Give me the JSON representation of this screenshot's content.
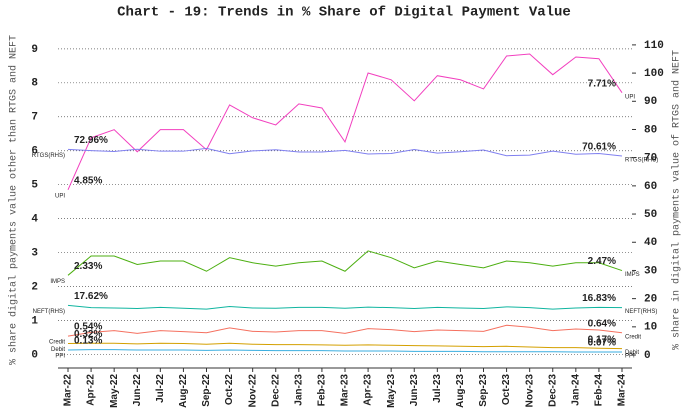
{
  "chart_data": {
    "type": "line",
    "title": "Chart - 19: Trends in % Share of Digital Payment Value",
    "y_label": "% share digital payments value other than RTGS and NEFT",
    "y2_label": "% share in digital payments value of RTGS and NEFT",
    "categories": [
      "Mar-22",
      "Apr-22",
      "May-22",
      "Jun-22",
      "Jul-22",
      "Aug-22",
      "Sep-22",
      "Oct-22",
      "Nov-22",
      "Dec-22",
      "Jan-23",
      "Feb-23",
      "Mar-23",
      "Apr-23",
      "May-23",
      "Jun-23",
      "Jul-23",
      "Aug-23",
      "Sep-23",
      "Oct-23",
      "Nov-23",
      "Dec-23",
      "Jan-24",
      "Feb-24",
      "Mar-24"
    ],
    "ylim": [
      -0.4,
      9.35
    ],
    "yticks": [
      0,
      1,
      2,
      3,
      4,
      5,
      6,
      7,
      8,
      9
    ],
    "y2lim": [
      -4.6,
      112.8
    ],
    "y2ticks": [
      0,
      10,
      20,
      30,
      40,
      50,
      60,
      70,
      80,
      90,
      100,
      110
    ],
    "grid": true,
    "series": [
      {
        "name": "UPI",
        "color": "#f23fbf",
        "values": [
          4.85,
          6.38,
          6.62,
          5.97,
          6.62,
          6.62,
          6.03,
          7.35,
          6.97,
          6.76,
          7.38,
          7.26,
          6.26,
          8.29,
          8.09,
          7.47,
          8.21,
          8.09,
          7.82,
          8.79,
          8.85,
          8.24,
          8.76,
          8.71,
          7.71
        ],
        "value_labels": [
          "4.85%",
          null,
          null,
          null,
          null,
          null,
          null,
          null,
          null,
          null,
          null,
          null,
          null,
          null,
          null,
          null,
          null,
          null,
          null,
          null,
          null,
          null,
          null,
          null,
          "7.71%"
        ]
      },
      {
        "name": "RTGS(RHS)",
        "color": "#8080f0",
        "axis": "y2",
        "values": [
          72.96,
          72.5,
          72.2,
          73,
          72.3,
          72.3,
          73.3,
          71.4,
          72.4,
          72.8,
          72,
          72,
          72.6,
          71.3,
          71.5,
          72.9,
          71.6,
          72.1,
          72.7,
          70.7,
          70.9,
          72.3,
          71.2,
          71.5,
          70.61
        ],
        "value_labels": [
          "72.96%",
          null,
          null,
          null,
          null,
          null,
          null,
          null,
          null,
          null,
          null,
          null,
          null,
          null,
          null,
          null,
          null,
          null,
          null,
          null,
          null,
          null,
          null,
          null,
          "70.61%"
        ]
      },
      {
        "name": "IMPS",
        "color": "#4caf10",
        "values": [
          2.33,
          2.9,
          2.9,
          2.65,
          2.75,
          2.75,
          2.45,
          2.85,
          2.7,
          2.6,
          2.7,
          2.75,
          2.45,
          3.05,
          2.85,
          2.55,
          2.75,
          2.65,
          2.55,
          2.75,
          2.7,
          2.6,
          2.7,
          2.7,
          2.47
        ],
        "value_labels": [
          "2.33%",
          null,
          null,
          null,
          null,
          null,
          null,
          null,
          null,
          null,
          null,
          null,
          null,
          null,
          null,
          null,
          null,
          null,
          null,
          null,
          null,
          null,
          null,
          null,
          "2.47%"
        ]
      },
      {
        "name": "NEFT(RHS)",
        "color": "#10b5a0",
        "axis": "y2",
        "values": [
          17.62,
          16.8,
          16.7,
          16.5,
          16.9,
          16.6,
          16.3,
          17.2,
          16.7,
          16.6,
          16.9,
          16.9,
          16.6,
          17,
          16.8,
          16.5,
          16.9,
          16.7,
          16.5,
          17.1,
          16.8,
          16.3,
          16.7,
          16.9,
          16.83
        ],
        "value_labels": [
          "17.62%",
          null,
          null,
          null,
          null,
          null,
          null,
          null,
          null,
          null,
          null,
          null,
          null,
          null,
          null,
          null,
          null,
          null,
          null,
          null,
          null,
          null,
          null,
          null,
          "16.83%"
        ]
      },
      {
        "name": "Credit",
        "color": "#f5705f",
        "values": [
          0.54,
          0.65,
          0.7,
          0.62,
          0.7,
          0.67,
          0.64,
          0.78,
          0.68,
          0.66,
          0.7,
          0.7,
          0.62,
          0.76,
          0.73,
          0.67,
          0.72,
          0.7,
          0.68,
          0.86,
          0.8,
          0.7,
          0.75,
          0.72,
          0.64
        ],
        "value_labels": [
          "0.54%",
          null,
          null,
          null,
          null,
          null,
          null,
          null,
          null,
          null,
          null,
          null,
          null,
          null,
          null,
          null,
          null,
          null,
          null,
          null,
          null,
          null,
          null,
          null,
          "0.64%"
        ]
      },
      {
        "name": "Debit",
        "color": "#d4a000",
        "values": [
          0.32,
          0.33,
          0.33,
          0.31,
          0.33,
          0.32,
          0.3,
          0.33,
          0.3,
          0.29,
          0.29,
          0.28,
          0.27,
          0.28,
          0.27,
          0.26,
          0.25,
          0.24,
          0.23,
          0.24,
          0.22,
          0.2,
          0.2,
          0.18,
          0.17
        ],
        "value_labels": [
          "0.32%",
          null,
          null,
          null,
          null,
          null,
          null,
          null,
          null,
          null,
          null,
          null,
          null,
          null,
          null,
          null,
          null,
          null,
          null,
          null,
          null,
          null,
          null,
          null,
          "0.17%"
        ]
      },
      {
        "name": "PPI",
        "color": "#3aaee0",
        "values": [
          0.13,
          0.14,
          0.14,
          0.13,
          0.13,
          0.13,
          0.12,
          0.13,
          0.12,
          0.11,
          0.11,
          0.11,
          0.1,
          0.1,
          0.1,
          0.09,
          0.09,
          0.09,
          0.08,
          0.08,
          0.08,
          0.08,
          0.07,
          0.07,
          0.07
        ],
        "value_labels": [
          "0.13%",
          null,
          null,
          null,
          null,
          null,
          null,
          null,
          null,
          null,
          null,
          null,
          null,
          null,
          null,
          null,
          null,
          null,
          null,
          null,
          null,
          null,
          null,
          null,
          "0.07%"
        ]
      }
    ]
  }
}
